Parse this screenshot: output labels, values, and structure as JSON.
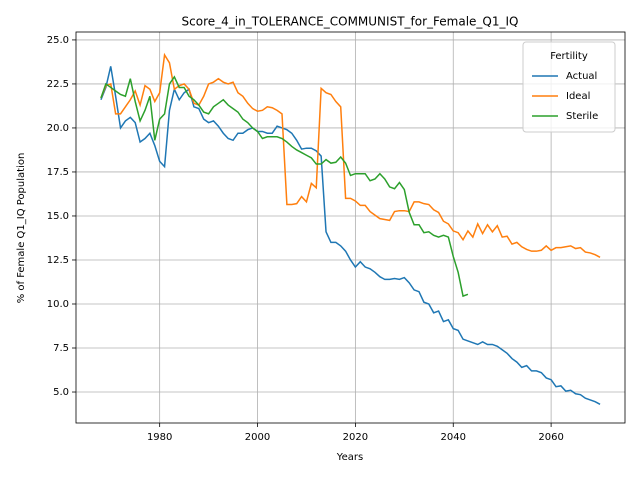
{
  "chart_data": {
    "type": "line",
    "title": "Score_4_in_TOLERANCE_COMMUNIST_for_Female_Q1_IQ",
    "xlabel": "Years",
    "ylabel": "% of Female Q1_IQ Population",
    "legend_title": "Fertility",
    "legend_loc": "upper right",
    "grid": true,
    "xlim": [
      1962.9,
      2075.1
    ],
    "ylim": [
      3.24,
      25.45
    ],
    "xticks": [
      1980,
      2000,
      2020,
      2040,
      2060
    ],
    "yticks": [
      {
        "value": 5,
        "label": "5.0"
      },
      {
        "value": 7.5,
        "label": "7.5"
      },
      {
        "value": 10,
        "label": "10.0"
      },
      {
        "value": 12.5,
        "label": "12.5"
      },
      {
        "value": 15,
        "label": "15.0"
      },
      {
        "value": 17.5,
        "label": "17.5"
      },
      {
        "value": 20,
        "label": "20.0"
      },
      {
        "value": 22.5,
        "label": "22.5"
      },
      {
        "value": 25,
        "label": "25.0"
      }
    ],
    "x": [
      1968,
      1969,
      1970,
      1971,
      1972,
      1973,
      1974,
      1975,
      1976,
      1977,
      1978,
      1979,
      1980,
      1981,
      1982,
      1983,
      1984,
      1985,
      1986,
      1987,
      1988,
      1989,
      1990,
      1991,
      1992,
      1993,
      1994,
      1995,
      1996,
      1997,
      1998,
      1999,
      2000,
      2001,
      2002,
      2003,
      2004,
      2005,
      2006,
      2007,
      2008,
      2009,
      2010,
      2011,
      2012,
      2013,
      2014,
      2015,
      2016,
      2017,
      2018,
      2019,
      2020,
      2021,
      2022,
      2023,
      2024,
      2025,
      2026,
      2027,
      2028,
      2029,
      2030,
      2031,
      2032,
      2033,
      2034,
      2035,
      2036,
      2037,
      2038,
      2039,
      2040,
      2041,
      2042,
      2043,
      2044,
      2045,
      2046,
      2047,
      2048,
      2049,
      2050,
      2051,
      2052,
      2053,
      2054,
      2055,
      2056,
      2057,
      2058,
      2059,
      2060,
      2061,
      2062,
      2063,
      2064,
      2065,
      2066,
      2067,
      2068,
      2069,
      2070
    ],
    "series": [
      {
        "name": "Actual",
        "color": "#1f77b4",
        "values": [
          21.6,
          22.3,
          23.5,
          21.8,
          20.0,
          20.4,
          20.6,
          20.3,
          19.2,
          19.4,
          19.7,
          19.0,
          18.1,
          17.8,
          21.0,
          22.2,
          21.6,
          22.0,
          22.2,
          21.2,
          21.1,
          20.5,
          20.3,
          20.4,
          20.1,
          19.7,
          19.4,
          19.3,
          19.7,
          19.7,
          19.9,
          20.0,
          19.8,
          19.8,
          19.7,
          19.7,
          20.1,
          20.0,
          19.9,
          19.7,
          19.3,
          18.8,
          18.85,
          18.85,
          18.7,
          18.4,
          14.1,
          13.5,
          13.5,
          13.3,
          13.0,
          12.5,
          12.1,
          12.4,
          12.1,
          12.0,
          11.8,
          11.55,
          11.4,
          11.4,
          11.45,
          11.4,
          11.5,
          11.2,
          10.8,
          10.7,
          10.1,
          10.0,
          9.5,
          9.6,
          9.0,
          9.1,
          8.6,
          8.5,
          8.0,
          7.9,
          7.8,
          7.7,
          7.85,
          7.7,
          7.7,
          7.6,
          7.4,
          7.2,
          6.9,
          6.7,
          6.4,
          6.5,
          6.2,
          6.2,
          6.1,
          5.8,
          5.7,
          5.3,
          5.35,
          5.05,
          5.1,
          4.9,
          4.85,
          4.65,
          4.55,
          4.45,
          4.3
        ]
      },
      {
        "name": "Ideal",
        "color": "#ff7f0e",
        "values": [
          21.7,
          22.4,
          22.5,
          20.8,
          20.8,
          21.2,
          21.6,
          22.1,
          21.3,
          22.4,
          22.2,
          21.5,
          22.0,
          24.15,
          23.7,
          22.2,
          22.4,
          22.5,
          22.2,
          21.4,
          21.3,
          21.8,
          22.5,
          22.6,
          22.8,
          22.6,
          22.5,
          22.6,
          22.0,
          21.8,
          21.4,
          21.1,
          20.95,
          21.0,
          21.2,
          21.15,
          21.0,
          20.8,
          15.65,
          15.65,
          15.7,
          16.1,
          15.8,
          16.85,
          16.6,
          22.25,
          22.0,
          21.9,
          21.5,
          21.2,
          16.0,
          16.0,
          15.85,
          15.6,
          15.6,
          15.25,
          15.05,
          14.85,
          14.8,
          14.75,
          15.25,
          15.3,
          15.3,
          15.25,
          15.8,
          15.8,
          15.7,
          15.65,
          15.35,
          15.2,
          14.7,
          14.55,
          14.15,
          14.05,
          13.65,
          14.15,
          13.8,
          14.55,
          14.0,
          14.5,
          14.1,
          14.45,
          13.8,
          13.85,
          13.4,
          13.5,
          13.25,
          13.1,
          13.0,
          13.0,
          13.05,
          13.3,
          13.05,
          13.2,
          13.2,
          13.25,
          13.3,
          13.15,
          13.2,
          12.95,
          12.9,
          12.8,
          12.65
        ]
      },
      {
        "name": "Sterile",
        "color": "#2ca02c",
        "values": [
          21.7,
          22.5,
          22.3,
          22.1,
          21.9,
          21.8,
          22.8,
          21.5,
          20.4,
          21.0,
          21.8,
          19.3,
          20.5,
          20.8,
          22.5,
          22.9,
          22.3,
          22.3,
          21.8,
          21.6,
          21.3,
          20.9,
          20.8,
          21.2,
          21.4,
          21.6,
          21.3,
          21.1,
          20.9,
          20.5,
          20.3,
          20.0,
          19.8,
          19.4,
          19.5,
          19.5,
          19.5,
          19.4,
          19.2,
          18.95,
          18.75,
          18.6,
          18.45,
          18.3,
          17.95,
          17.95,
          18.2,
          18.0,
          18.05,
          18.35,
          18.0,
          17.3,
          17.4,
          17.4,
          17.4,
          17.0,
          17.1,
          17.4,
          17.1,
          16.65,
          16.55,
          16.9,
          16.5,
          15.2,
          14.5,
          14.5,
          14.05,
          14.1,
          13.9,
          13.8,
          13.9,
          13.8,
          12.7,
          11.8,
          10.45,
          10.55,
          null,
          null,
          null,
          null,
          null,
          null,
          null,
          null,
          null,
          null,
          null,
          null,
          null,
          null,
          null,
          null,
          null,
          null,
          null,
          null,
          null,
          null,
          null,
          null,
          null,
          null,
          null
        ]
      }
    ]
  }
}
